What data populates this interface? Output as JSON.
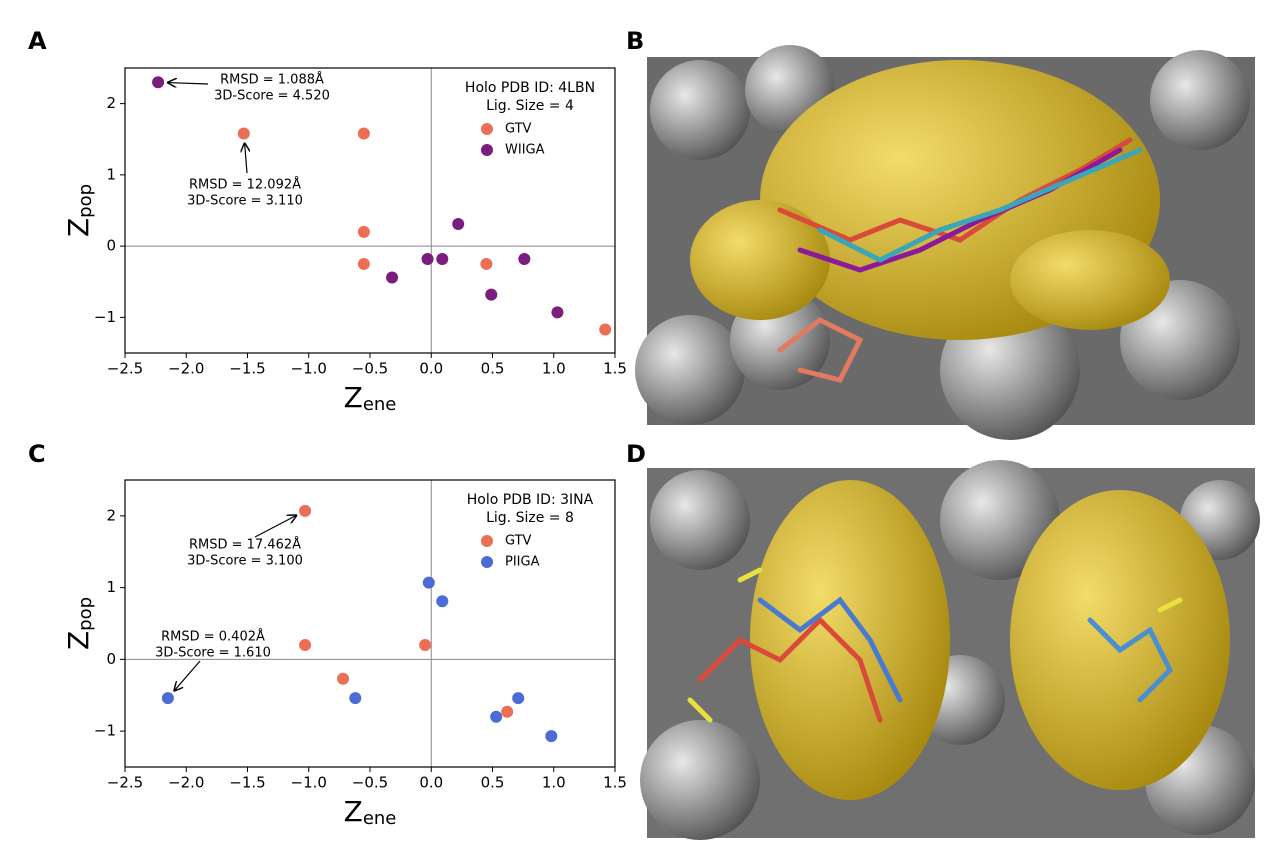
{
  "panels": [
    "A",
    "B",
    "C",
    "D"
  ],
  "chart_data": [
    {
      "type": "scatter",
      "xlabel": {
        "text": "Z",
        "subscript": "ene"
      },
      "ylabel": {
        "text": "Z",
        "subscript": "pop"
      },
      "xlim": [
        -2.5,
        1.5
      ],
      "ylim": [
        -1.5,
        2.5
      ],
      "xticks": [
        {
          "value": -2.5,
          "label": "−2.5"
        },
        {
          "value": -2.0,
          "label": "−2.0"
        },
        {
          "value": -1.5,
          "label": "−1.5"
        },
        {
          "value": -1.0,
          "label": "−1.0"
        },
        {
          "value": -0.5,
          "label": "−0.5"
        },
        {
          "value": 0,
          "label": "0.0"
        },
        0.5,
        {
          "value": 1.0,
          "label": "1.0"
        },
        1.5
      ],
      "yticks": [
        {
          "value": -1,
          "label": "−1"
        },
        0,
        1,
        2
      ],
      "zero_lines": true,
      "legend_corner": "upper right",
      "legend_title": [
        "Holo PDB ID: 4LBN",
        "Lig. Size = 4"
      ],
      "series": [
        {
          "name": "GTV",
          "color": "#eb6e55",
          "x": [
            -1.53,
            -0.55,
            -0.55,
            -0.55,
            0.45,
            1.42
          ],
          "y": [
            1.58,
            1.58,
            0.2,
            -0.25,
            -0.25,
            -1.17
          ]
        },
        {
          "name": "WIIGA",
          "color": "#7b1c7f",
          "x": [
            -2.23,
            -0.32,
            -0.03,
            0.09,
            0.22,
            0.49,
            0.76,
            1.03
          ],
          "y": [
            2.3,
            -0.44,
            -0.18,
            -0.18,
            0.31,
            -0.68,
            -0.18,
            -0.93
          ]
        }
      ],
      "annotations": [
        {
          "lines": [
            "RMSD = 1.088Å",
            "3D-Score = 4.520"
          ]
        },
        {
          "lines": [
            "RMSD = 12.092Å",
            "3D-Score = 3.110"
          ]
        }
      ]
    },
    {
      "type": "scatter",
      "xlabel": {
        "text": "Z",
        "subscript": "ene"
      },
      "ylabel": {
        "text": "Z",
        "subscript": "pop"
      },
      "xlim": [
        -2.5,
        1.5
      ],
      "ylim": [
        -1.5,
        2.5
      ],
      "xticks": [
        {
          "value": -2.5,
          "label": "−2.5"
        },
        {
          "value": -2.0,
          "label": "−2.0"
        },
        {
          "value": -1.5,
          "label": "−1.5"
        },
        {
          "value": -1.0,
          "label": "−1.0"
        },
        {
          "value": -0.5,
          "label": "−0.5"
        },
        {
          "value": 0,
          "label": "0.0"
        },
        0.5,
        {
          "value": 1.0,
          "label": "1.0"
        },
        1.5
      ],
      "yticks": [
        {
          "value": -1,
          "label": "−1"
        },
        0,
        1,
        2
      ],
      "zero_lines": true,
      "legend_corner": "upper right",
      "legend_title": [
        "Holo PDB ID: 3INA",
        "Lig. Size = 8"
      ],
      "series": [
        {
          "name": "GTV",
          "color": "#eb6e55",
          "x": [
            -1.03,
            -1.03,
            -0.72,
            -0.05,
            0.62
          ],
          "y": [
            2.07,
            0.2,
            -0.27,
            0.2,
            -0.73
          ]
        },
        {
          "name": "PIIGA",
          "color": "#4a6cd4",
          "x": [
            -2.15,
            -0.62,
            -0.02,
            0.09,
            0.53,
            0.71,
            0.98
          ],
          "y": [
            -0.54,
            -0.54,
            1.07,
            0.81,
            -0.8,
            -0.54,
            -1.07
          ]
        }
      ],
      "annotations": [
        {
          "lines": [
            "RMSD = 17.462Å",
            "3D-Score = 3.100"
          ]
        },
        {
          "lines": [
            "RMSD = 0.402Å",
            "3D-Score = 1.610"
          ]
        }
      ]
    }
  ]
}
